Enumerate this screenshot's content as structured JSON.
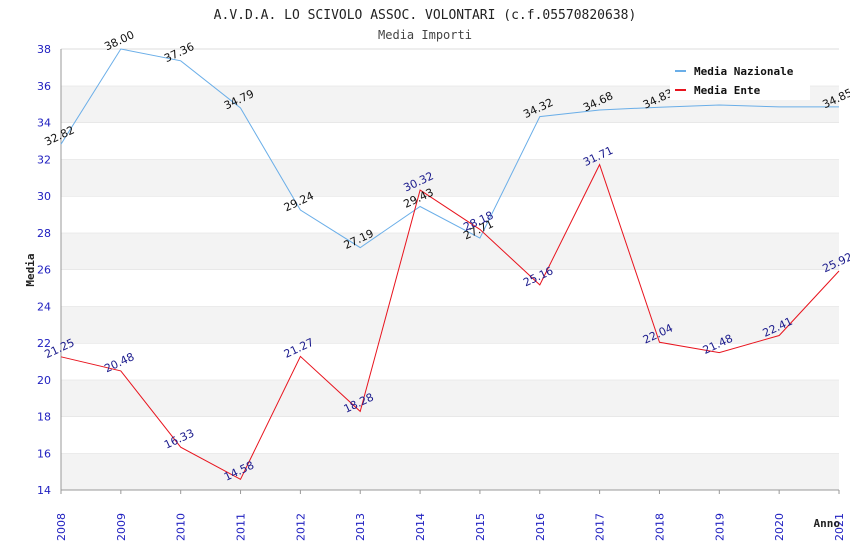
{
  "chart_data": {
    "type": "line",
    "title": "A.V.D.A. LO SCIVOLO ASSOC. VOLONTARI (c.f.05570820638)",
    "subtitle": "Media Importi",
    "xlabel": "Anno",
    "ylabel": "Media",
    "ylim": [
      14,
      38
    ],
    "yticks": [
      14,
      16,
      18,
      20,
      22,
      24,
      26,
      28,
      30,
      32,
      34,
      36,
      38
    ],
    "x": [
      "2008",
      "2009",
      "2010",
      "2011",
      "2012",
      "2013",
      "2014",
      "2015",
      "2016",
      "2017",
      "2018",
      "2019",
      "2020",
      "2021"
    ],
    "legend_position": "top-right",
    "grid": "horizontal bands",
    "series": [
      {
        "name": "Media Nazionale",
        "color": "#6aaee8",
        "values": [
          32.82,
          38.0,
          37.36,
          34.79,
          29.24,
          27.19,
          29.43,
          27.71,
          34.32,
          34.68,
          34.83,
          34.95,
          34.85,
          34.85
        ],
        "labels": [
          "32.82",
          "38.00",
          "37.36",
          "34.79",
          "29.24",
          "27.19",
          "29.43",
          "27.71",
          "34.32",
          "34.68",
          "34.83",
          "",
          "",
          "34.85"
        ]
      },
      {
        "name": "Media Ente",
        "color": "#e8141e",
        "values": [
          21.25,
          20.48,
          16.33,
          14.58,
          21.27,
          18.28,
          30.32,
          28.18,
          25.16,
          31.71,
          22.04,
          21.48,
          22.41,
          25.92
        ],
        "labels": [
          "21.25",
          "20.48",
          "16.33",
          "14.58",
          "21.27",
          "18.28",
          "30.32",
          "28.18",
          "25.16",
          "31.71",
          "22.04",
          "21.48",
          "22.41",
          "25.92"
        ]
      }
    ]
  }
}
